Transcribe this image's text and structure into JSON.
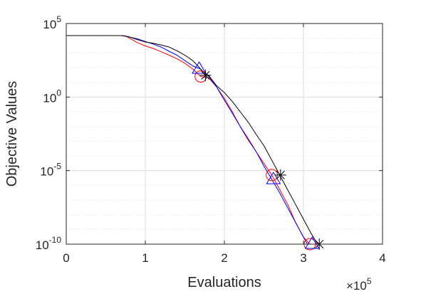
{
  "chart_data": {
    "type": "line",
    "title": "",
    "xlabel": "Evaluations",
    "ylabel": "Objective Values",
    "x_multiplier_label": "×10",
    "x_multiplier_exponent": "5",
    "xlim": [
      0,
      400000
    ],
    "ylim": [
      1e-10,
      100000.0
    ],
    "yscale": "log",
    "grid": true,
    "minor_grid_y": true,
    "legend": "none",
    "x_ticks": [
      {
        "value": 0,
        "label": "0"
      },
      {
        "value": 100000,
        "label": "1"
      },
      {
        "value": 200000,
        "label": "2"
      },
      {
        "value": 300000,
        "label": "3"
      },
      {
        "value": 400000,
        "label": "4"
      }
    ],
    "y_ticks": [
      {
        "value": 1e-10,
        "base": "10",
        "exp": "-10"
      },
      {
        "value": 1e-05,
        "base": "10",
        "exp": "-5"
      },
      {
        "value": 1,
        "base": "10",
        "exp": "0"
      },
      {
        "value": 100000.0,
        "base": "10",
        "exp": "5"
      }
    ],
    "series": [
      {
        "color": "#ff0000",
        "marker": "circle",
        "points": [
          [
            0,
            15000
          ],
          [
            30000,
            15000
          ],
          [
            60000,
            15000
          ],
          [
            70000,
            15000
          ],
          [
            75000,
            14000
          ],
          [
            80000,
            10000
          ],
          [
            90000,
            5000
          ],
          [
            100000,
            3000
          ],
          [
            110000,
            2000
          ],
          [
            120000,
            1200
          ],
          [
            130000,
            700
          ],
          [
            140000,
            400
          ],
          [
            150000,
            200
          ],
          [
            160000,
            80
          ],
          [
            170000,
            25
          ],
          [
            180000,
            20
          ],
          [
            190000,
            5
          ],
          [
            200000,
            0.8
          ],
          [
            210000,
            0.1
          ],
          [
            220000,
            0.01
          ],
          [
            230000,
            0.0012
          ],
          [
            240000,
            0.0002
          ],
          [
            250000,
            3e-05
          ],
          [
            260000,
            5e-06
          ],
          [
            270000,
            5e-07
          ],
          [
            280000,
            5e-08
          ],
          [
            290000,
            3e-09
          ],
          [
            300000,
            3e-10
          ],
          [
            308000,
            1e-10
          ],
          [
            310000,
            1e-10
          ]
        ],
        "marker_points": [
          [
            170000,
            25
          ],
          [
            260000,
            5e-06
          ],
          [
            308000,
            1e-10
          ]
        ]
      },
      {
        "color": "#0000ff",
        "marker": "triangle",
        "points": [
          [
            0,
            15000
          ],
          [
            60000,
            15000
          ],
          [
            70000,
            15000
          ],
          [
            75000,
            14000
          ],
          [
            80000,
            12000
          ],
          [
            90000,
            9000
          ],
          [
            100000,
            6000
          ],
          [
            110000,
            4000
          ],
          [
            120000,
            2500
          ],
          [
            130000,
            1300
          ],
          [
            140000,
            700
          ],
          [
            150000,
            300
          ],
          [
            160000,
            130
          ],
          [
            170000,
            80
          ],
          [
            180000,
            25
          ],
          [
            190000,
            5
          ],
          [
            200000,
            0.6
          ],
          [
            210000,
            0.08
          ],
          [
            220000,
            0.01
          ],
          [
            230000,
            0.0015
          ],
          [
            240000,
            0.0002
          ],
          [
            250000,
            2e-05
          ],
          [
            260000,
            2.5e-06
          ],
          [
            270000,
            3e-07
          ],
          [
            280000,
            3e-08
          ],
          [
            290000,
            3e-09
          ],
          [
            300000,
            3e-10
          ],
          [
            305000,
            1e-10
          ],
          [
            310000,
            1e-10
          ]
        ],
        "marker_points": [
          [
            168000,
            80
          ],
          [
            262000,
            2.5e-06
          ],
          [
            311000,
            1e-10
          ]
        ]
      },
      {
        "color": "#000000",
        "marker": "star",
        "points": [
          [
            0,
            15000
          ],
          [
            60000,
            15000
          ],
          [
            70000,
            15000
          ],
          [
            80000,
            12000
          ],
          [
            90000,
            8000
          ],
          [
            100000,
            5500
          ],
          [
            110000,
            4500
          ],
          [
            120000,
            3500
          ],
          [
            130000,
            2500
          ],
          [
            140000,
            1400
          ],
          [
            150000,
            700
          ],
          [
            160000,
            300
          ],
          [
            170000,
            80
          ],
          [
            175000,
            40
          ],
          [
            180000,
            30
          ],
          [
            190000,
            6
          ],
          [
            200000,
            2
          ],
          [
            210000,
            0.5
          ],
          [
            220000,
            0.1
          ],
          [
            230000,
            0.02
          ],
          [
            240000,
            0.003
          ],
          [
            250000,
            0.0005
          ],
          [
            260000,
            5e-05
          ],
          [
            270000,
            5e-06
          ],
          [
            280000,
            5e-07
          ],
          [
            290000,
            5e-08
          ],
          [
            300000,
            5e-09
          ],
          [
            310000,
            5e-10
          ],
          [
            318000,
            1e-10
          ],
          [
            322000,
            1e-10
          ]
        ],
        "marker_points": [
          [
            176000,
            30
          ],
          [
            271000,
            5e-06
          ],
          [
            320000,
            1e-10
          ]
        ]
      }
    ]
  }
}
